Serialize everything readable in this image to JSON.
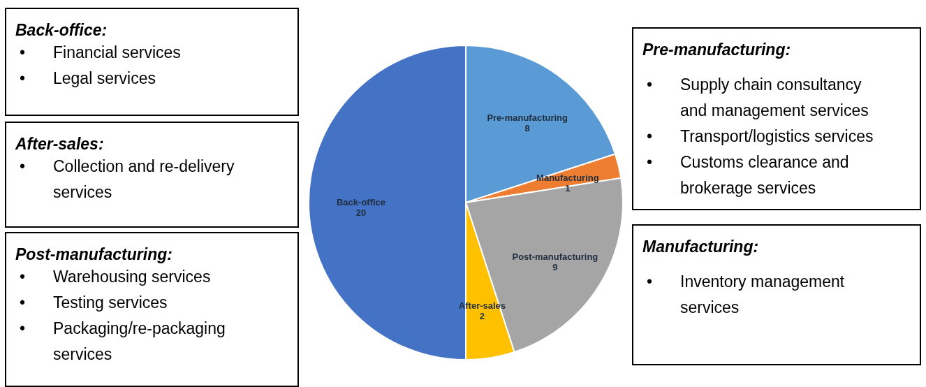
{
  "chart_data": {
    "type": "pie",
    "categories": [
      "Pre-manufacturing",
      "Manufacturing",
      "Post-manufacturing",
      "After-sales",
      "Back-office"
    ],
    "values": [
      8,
      1,
      9,
      2,
      20
    ],
    "colors": [
      "#5b9bd5",
      "#ed7d31",
      "#a5a5a5",
      "#ffc000",
      "#4472c4"
    ],
    "data_labels": true,
    "annotations": [
      "Back-office:\n• Financial services\n• Legal services",
      "After-sales:\n• Collection and re-delivery\nservices",
      "Post-manufacturing:\n• Warehousing services\n• Testing services\n• Packaging/re-packaging\nservices",
      "Pre-manufacturing:\n• Supply chain consultancy\nand management services\n• Transport/logistics services\n• Customs clearance and\nbrokerage services",
      "Manufacturing:\n• Inventory management\nservices"
    ]
  }
}
